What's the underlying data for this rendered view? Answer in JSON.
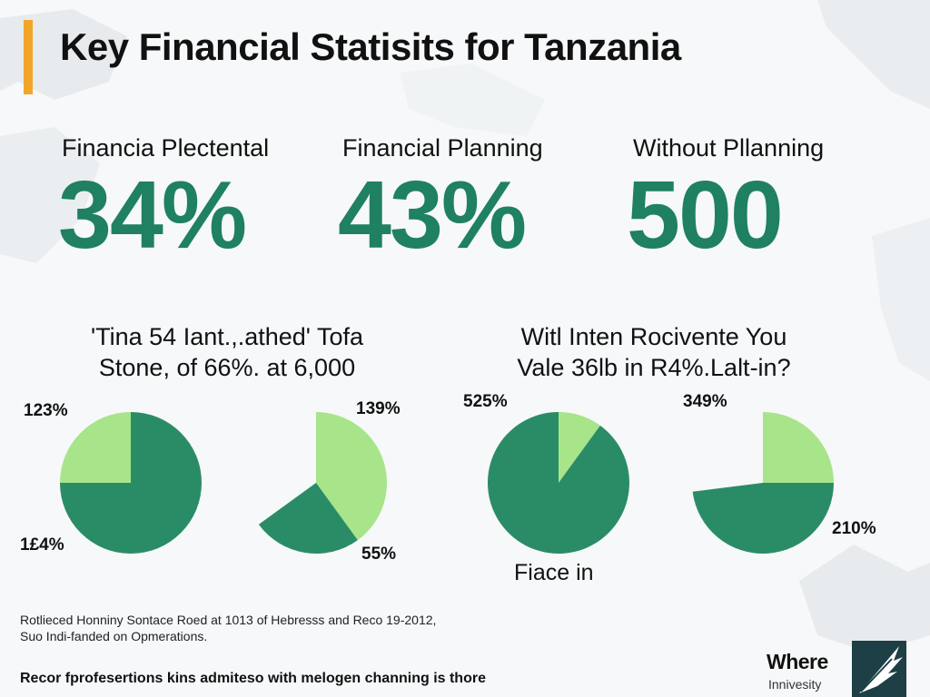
{
  "title": "Key Financial Statisits for Tanzania",
  "colors": {
    "accent_bar": "#f2a629",
    "stat_green": "#1f8062",
    "pie_dark": "#2a8c66",
    "pie_light": "#a8e489",
    "text": "#111111",
    "logo_dark": "#1d3f45"
  },
  "stats": [
    {
      "label": "Financia Plectental",
      "value": "34%"
    },
    {
      "label": "Financial Planning",
      "value": "43%"
    },
    {
      "label": "Without Pllanning",
      "value": "500"
    }
  ],
  "groups": [
    {
      "title_lines": [
        "'Tina 54 Iant.,.athed' Tofa",
        "Stone, of 66%. at 6,000"
      ]
    },
    {
      "title_lines": [
        "Witl Inten Rocivente You",
        "Vale 36lb in R4%.Lalt-in?"
      ]
    }
  ],
  "chart_data": [
    {
      "type": "pie",
      "title": "",
      "slices": [
        {
          "name": "dark",
          "value": 75,
          "color": "#2a8c66"
        },
        {
          "name": "light",
          "value": 25,
          "color": "#a8e489"
        }
      ],
      "labels": [
        "123%",
        "1£4%"
      ]
    },
    {
      "type": "pie",
      "title": "",
      "slices": [
        {
          "name": "light",
          "value": 40,
          "color": "#a8e489"
        },
        {
          "name": "dark",
          "value": 25,
          "color": "#2a8c66"
        }
      ],
      "labels": [
        "139%",
        "55%"
      ]
    },
    {
      "type": "pie",
      "title": "",
      "slices": [
        {
          "name": "light",
          "value": 10,
          "color": "#a8e489"
        },
        {
          "name": "dark",
          "value": 90,
          "color": "#2a8c66"
        }
      ],
      "labels": [
        "525%"
      ],
      "caption": "Fiace in"
    },
    {
      "type": "pie",
      "title": "",
      "slices": [
        {
          "name": "light",
          "value": 25,
          "color": "#a8e489"
        },
        {
          "name": "dark",
          "value": 48,
          "color": "#2a8c66"
        }
      ],
      "labels": [
        "349%",
        "210%"
      ]
    }
  ],
  "footnotes": [
    "Rotlieced Honniny Sontace Roed at 1013 of Hebresss and Reco 19-2012,",
    "Suo Indi-fanded on Opmerations."
  ],
  "bottom_note": "Recor fprofesertions kins admiteso with melogen channing is thore",
  "logo": {
    "text": "Where",
    "sub": "Innivesity",
    "icon": "feather-logo-icon"
  }
}
